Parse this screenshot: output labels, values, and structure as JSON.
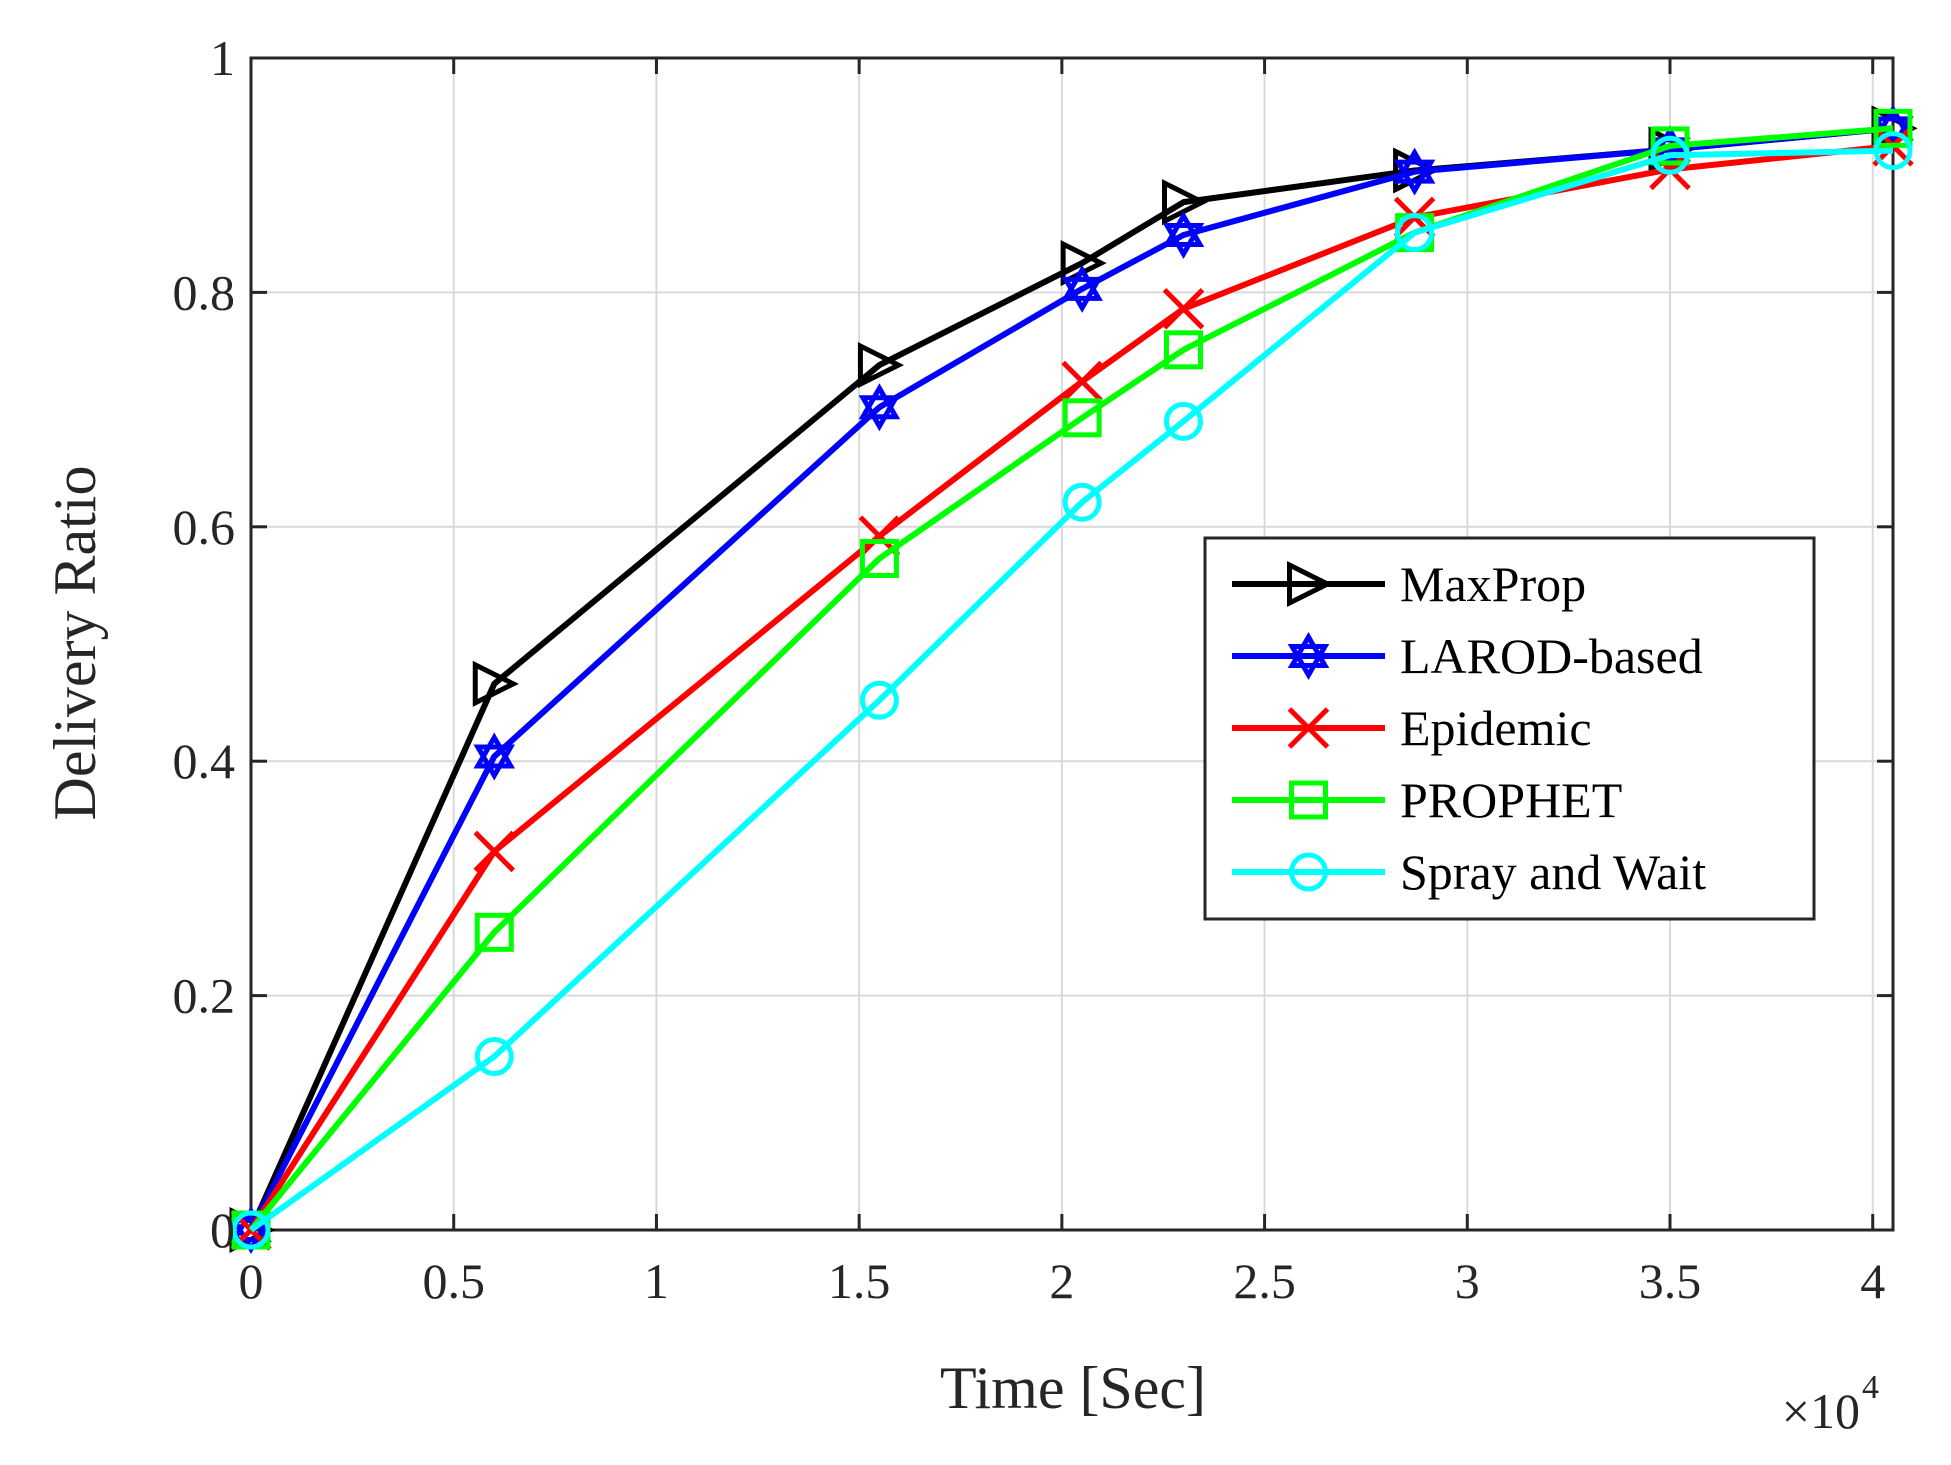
{
  "chart_data": {
    "type": "line",
    "title": "",
    "xlabel": "Time [Sec]",
    "ylabel": "Delivery Ratio",
    "x_multiplier_label": "×10",
    "x_multiplier_exponent": "4",
    "xlim": [
      0,
      4.05
    ],
    "ylim": [
      0,
      1
    ],
    "xticks": [
      0,
      0.5,
      1,
      1.5,
      2,
      2.5,
      3,
      3.5,
      4
    ],
    "xtick_labels": [
      "0",
      "0.5",
      "1",
      "1.5",
      "2",
      "2.5",
      "3",
      "3.5",
      "4"
    ],
    "yticks": [
      0,
      0.2,
      0.4,
      0.6,
      0.8,
      1
    ],
    "ytick_labels": [
      "0",
      "0.2",
      "0.4",
      "0.6",
      "0.8",
      "1"
    ],
    "grid": true,
    "legend_position": "center-right",
    "series": [
      {
        "name": "MaxProp",
        "color": "#000000",
        "marker": "triangle-right",
        "x": [
          0,
          0.6,
          1.55,
          2.05,
          2.3,
          2.87,
          3.5,
          4.05
        ],
        "y": [
          0,
          0.466,
          0.738,
          0.825,
          0.877,
          0.904,
          0.922,
          0.94
        ]
      },
      {
        "name": "LAROD-based",
        "color": "#0000ff",
        "marker": "hexagram",
        "x": [
          0,
          0.6,
          1.55,
          2.05,
          2.3,
          2.87,
          3.5,
          4.05
        ],
        "y": [
          0,
          0.404,
          0.702,
          0.803,
          0.849,
          0.903,
          0.922,
          0.94
        ]
      },
      {
        "name": "Epidemic",
        "color": "#ff0000",
        "marker": "x",
        "x": [
          0,
          0.6,
          1.55,
          2.05,
          2.3,
          2.87,
          3.5,
          4.05
        ],
        "y": [
          0,
          0.323,
          0.592,
          0.724,
          0.786,
          0.864,
          0.905,
          0.925
        ]
      },
      {
        "name": "PROPHET",
        "color": "#00ff00",
        "marker": "square",
        "x": [
          0,
          0.6,
          1.55,
          2.05,
          2.3,
          2.87,
          3.5,
          4.05
        ],
        "y": [
          0,
          0.254,
          0.573,
          0.693,
          0.751,
          0.851,
          0.925,
          0.94
        ]
      },
      {
        "name": "Spray and Wait",
        "color": "#00ffff",
        "marker": "circle",
        "x": [
          0,
          0.6,
          1.55,
          2.05,
          2.3,
          2.87,
          3.5,
          4.05
        ],
        "y": [
          0,
          0.148,
          0.452,
          0.621,
          0.69,
          0.851,
          0.917,
          0.921
        ]
      }
    ]
  }
}
